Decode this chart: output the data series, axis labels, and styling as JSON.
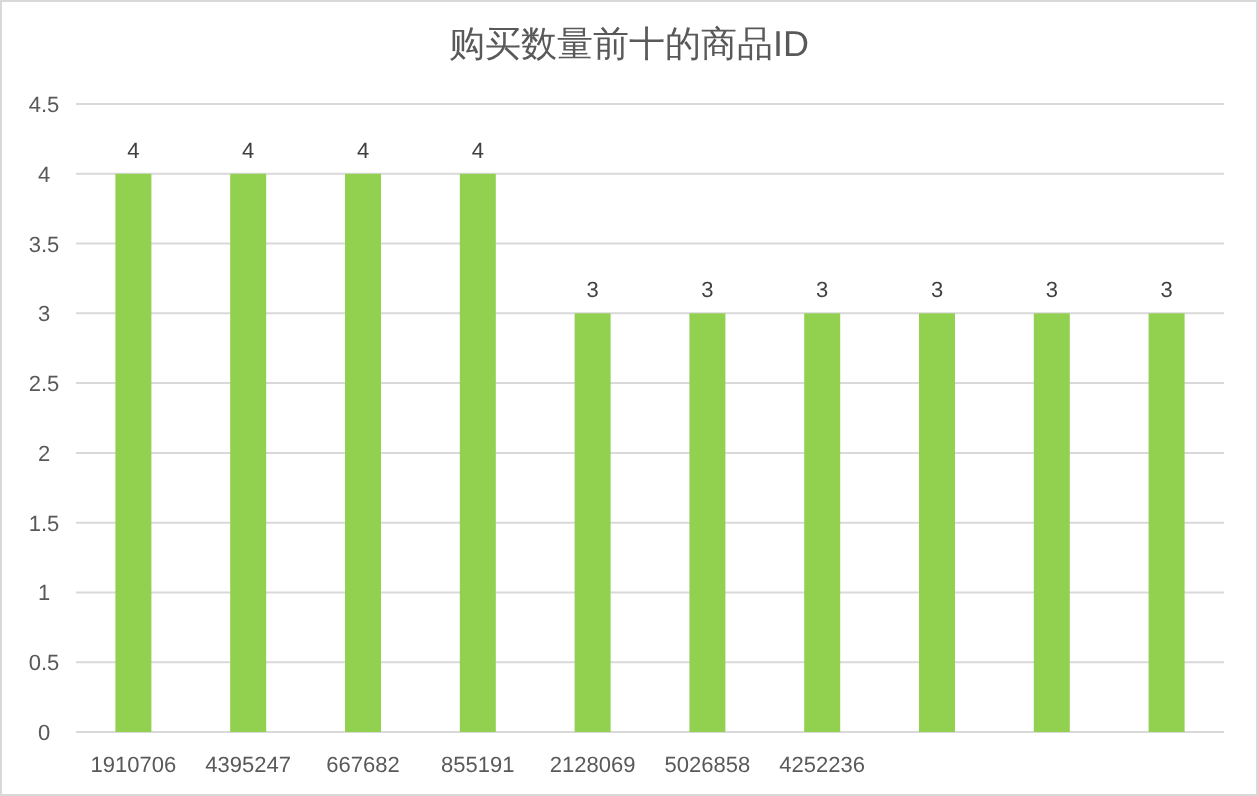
{
  "chart_data": {
    "type": "bar",
    "title": "购买数量前十的商品ID",
    "categories": [
      "1910706",
      "4395247",
      "667682",
      "855191",
      "2128069",
      "5026858",
      "4252236",
      null,
      null,
      null
    ],
    "values": [
      4,
      4,
      4,
      4,
      3,
      3,
      3,
      3,
      3,
      3
    ],
    "color": "#92d050",
    "ylim": [
      0,
      4.5
    ],
    "yticks": [
      0,
      0.5,
      1,
      1.5,
      2,
      2.5,
      3,
      3.5,
      4,
      4.5
    ],
    "grid": "y",
    "data_labels": true
  }
}
